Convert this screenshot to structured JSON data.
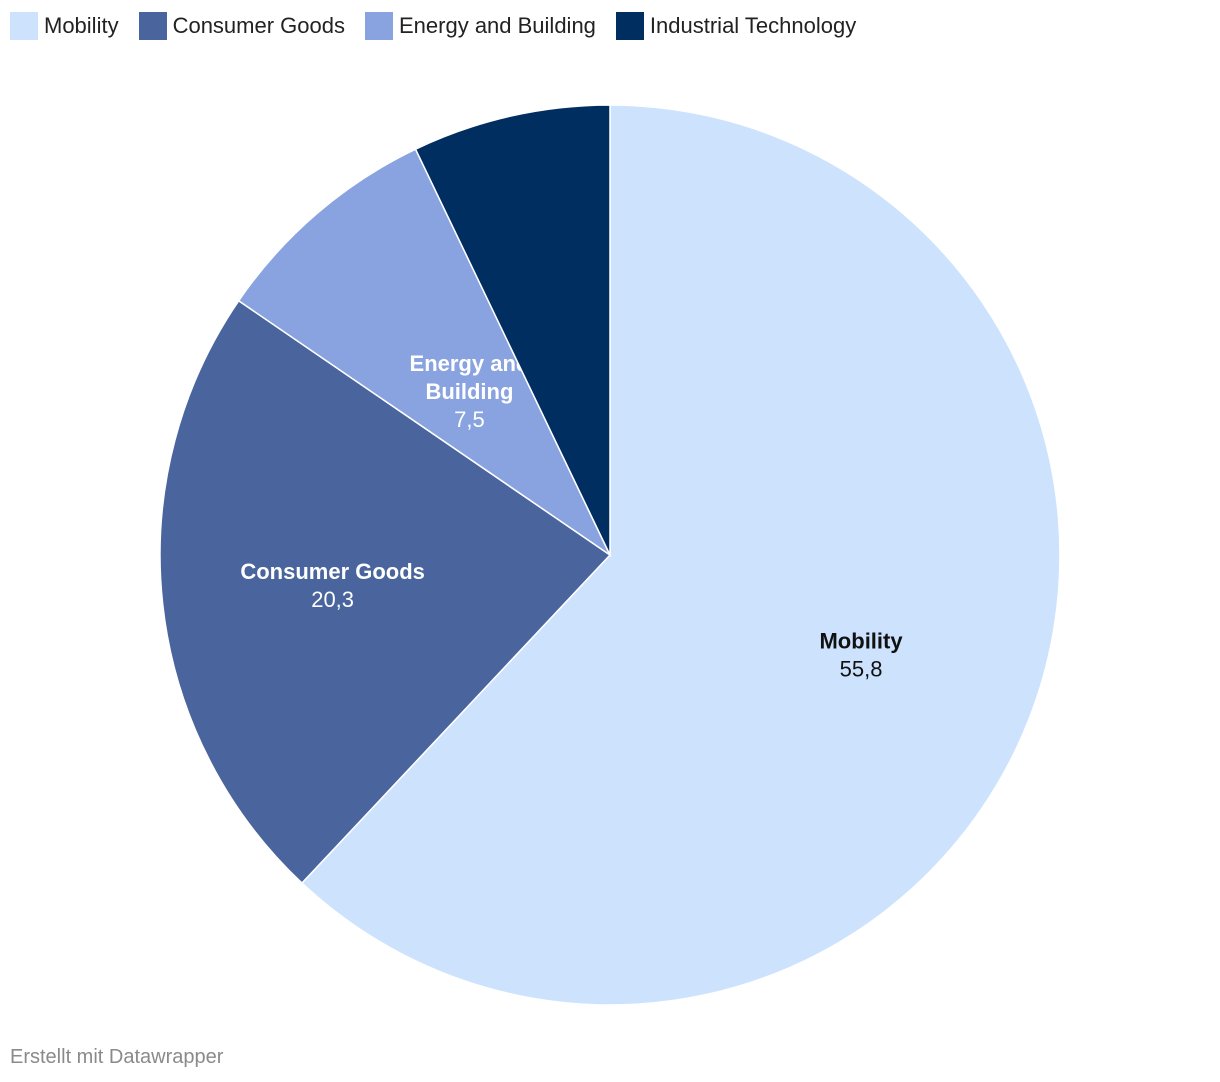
{
  "chart_data": {
    "type": "pie",
    "slices": [
      {
        "label": "Mobility",
        "label_lines": [
          "Mobility"
        ],
        "value": 55.8,
        "value_label": "55,8",
        "color": "#cce2fd",
        "text_color": "#111111"
      },
      {
        "label": "Consumer Goods",
        "label_lines": [
          "Consumer Goods"
        ],
        "value": 20.3,
        "value_label": "20,3",
        "color": "#4a649e",
        "text_color": "#ffffff"
      },
      {
        "label": "Energy and Building",
        "label_lines": [
          "Energy and",
          "Building"
        ],
        "value": 7.5,
        "value_label": "7,5",
        "color": "#89a3e0",
        "text_color": "#ffffff"
      },
      {
        "label": "Industrial Technology",
        "label_lines": [],
        "value": 6.4,
        "value_label": "",
        "color": "#002e61",
        "text_color": "#ffffff"
      }
    ],
    "legend": [
      "Mobility",
      "Consumer Goods",
      "Energy and Building",
      "Industrial Technology"
    ],
    "legend_position": "top-left",
    "start_angle": "12 o'clock",
    "direction": "clockwise"
  },
  "footer": {
    "credit": "Erstellt mit Datawrapper"
  }
}
